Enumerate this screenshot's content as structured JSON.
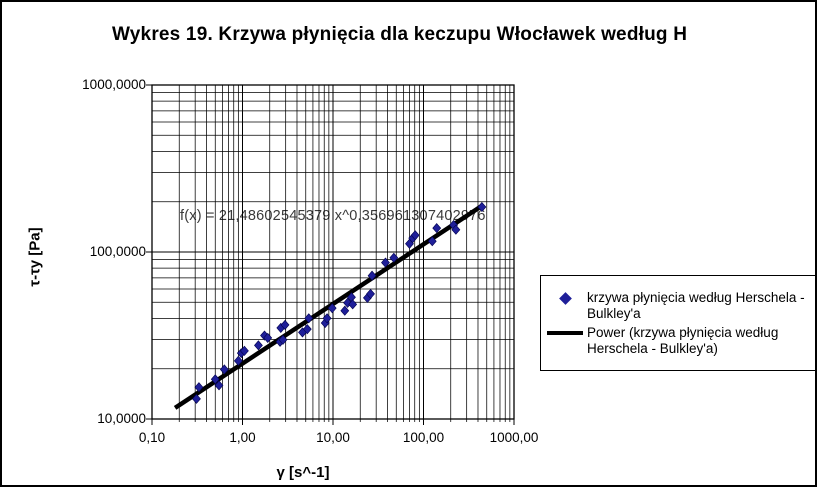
{
  "chart": {
    "title": "Wykres 19. Krzywa płynięcia dla keczupu Włocławek według H",
    "equation_label": "f(x) = 21,48602545379 x^0,356961307402976"
  },
  "axes": {
    "x": {
      "title": "γ [s^-1]",
      "scale": "log",
      "min": 0.1,
      "max": 1000,
      "ticks": [
        {
          "v": 0.1,
          "label": "0,10"
        },
        {
          "v": 1,
          "label": "1,00"
        },
        {
          "v": 10,
          "label": "10,00"
        },
        {
          "v": 100,
          "label": "100,00"
        },
        {
          "v": 1000,
          "label": "1000,00"
        }
      ]
    },
    "y": {
      "title": "τ-τy [Pa]",
      "scale": "log",
      "min": 10,
      "max": 1000,
      "ticks": [
        {
          "v": 10,
          "label": "10,0000"
        },
        {
          "v": 100,
          "label": "100,0000"
        },
        {
          "v": 1000,
          "label": "1000,0000"
        }
      ]
    }
  },
  "legend": {
    "entries": [
      {
        "marker": "diamond",
        "color": "#1f1f99",
        "label": "krzywa płynięcia według Herschela - Bulkley'a"
      },
      {
        "marker": "line",
        "color": "#000000",
        "label": "Power (krzywa płynięcia według Herschela - Bulkley'a)"
      }
    ]
  },
  "chart_data": {
    "type": "scatter",
    "title": "Wykres 19. Krzywa płynięcia dla keczupu Włocławek według H",
    "xlabel": "γ [s^-1]",
    "ylabel": "τ-τy [Pa]",
    "xscale": "log",
    "yscale": "log",
    "xlim": [
      0.1,
      1000
    ],
    "ylim": [
      10,
      1000
    ],
    "grid": "major+minor",
    "legend_position": "right",
    "series": [
      {
        "name": "krzywa płynięcia według Herschela - Bulkley'a",
        "marker": "diamond",
        "color": "#1f1f99",
        "points": [
          [
            0.31,
            13.2
          ],
          [
            0.33,
            15.5
          ],
          [
            0.5,
            17.3
          ],
          [
            0.55,
            15.9
          ],
          [
            0.63,
            19.8
          ],
          [
            0.9,
            22.3
          ],
          [
            0.97,
            24.8
          ],
          [
            1.05,
            25.6
          ],
          [
            1.5,
            27.6
          ],
          [
            1.75,
            31.6
          ],
          [
            1.9,
            30.6
          ],
          [
            2.6,
            29.0
          ],
          [
            2.8,
            29.8
          ],
          [
            2.65,
            35.1
          ],
          [
            2.95,
            36.6
          ],
          [
            4.6,
            33.0
          ],
          [
            5.2,
            34.5
          ],
          [
            5.4,
            40.1
          ],
          [
            8.2,
            37.6
          ],
          [
            8.6,
            40.1
          ],
          [
            9.8,
            46.1
          ],
          [
            13.5,
            44.5
          ],
          [
            14.5,
            49.6
          ],
          [
            16.0,
            53.6
          ],
          [
            16.5,
            48.6
          ],
          [
            24,
            53.1
          ],
          [
            26,
            56.1
          ],
          [
            27,
            72.1
          ],
          [
            38,
            86.4
          ],
          [
            47,
            92.3
          ],
          [
            70,
            112
          ],
          [
            76,
            121
          ],
          [
            81,
            126
          ],
          [
            125,
            116
          ],
          [
            140,
            139
          ],
          [
            215,
            145
          ],
          [
            228,
            136
          ],
          [
            442,
            186
          ]
        ]
      }
    ],
    "trendline": {
      "name": "Power (krzywa płynięcia według Herschela - Bulkley'a)",
      "type": "power",
      "a": 21.48602545379,
      "b": 0.356961307402976,
      "x_start": 0.18,
      "x_end": 445,
      "color": "#000000",
      "equation_text": "f(x) = 21,48602545379 x^0,356961307402976"
    }
  },
  "colors": {
    "marker_fill": "#1f1f99",
    "marker_edge": "#00004d",
    "trend": "#000000",
    "grid": "#000000",
    "frame": "#000000",
    "background": "#ffffff"
  }
}
